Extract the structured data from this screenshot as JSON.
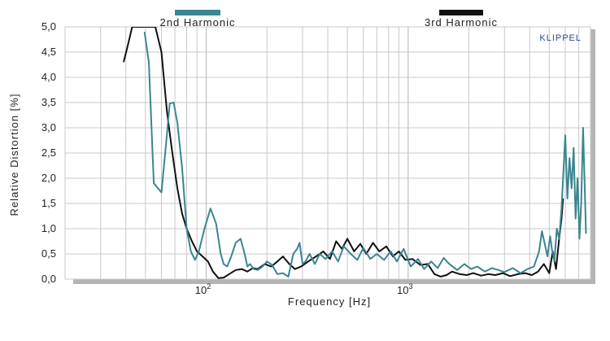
{
  "chart_data": {
    "type": "line",
    "title": "",
    "xlabel": "Frequency  [Hz]",
    "ylabel": "Relative Distortion  [%]",
    "xscale": "log",
    "xlim": [
      20,
      8000
    ],
    "ylim": [
      0,
      5
    ],
    "grid": true,
    "legend_position": "top",
    "watermark": "KLIPPEL",
    "colors": {
      "background": "#ffffff",
      "grid": "#c8c8c8",
      "frame_shadow": "#b4b4b4",
      "axis_text": "#222222",
      "watermark": "#2a4a9a"
    },
    "y_ticks": [
      "0,0",
      "0,5",
      "1,0",
      "1,5",
      "2,0",
      "2,5",
      "3,0",
      "3,5",
      "4,0",
      "4,5",
      "5,0"
    ],
    "x_ticks": [
      {
        "value": 100,
        "base": "10",
        "exp": "2"
      },
      {
        "value": 1000,
        "base": "10",
        "exp": "3"
      }
    ],
    "series": [
      {
        "name": "2nd Harmonic",
        "color": "#3a8590",
        "x": [
          49.5,
          52,
          55,
          60,
          63,
          66,
          69,
          72,
          76,
          80,
          84,
          88,
          92,
          98,
          105,
          112,
          118,
          122,
          127,
          133,
          140,
          148,
          155,
          160,
          165,
          172,
          180,
          190,
          200,
          212,
          225,
          240,
          255,
          270,
          282,
          290,
          300,
          310,
          325,
          345,
          365,
          390,
          420,
          450,
          480,
          520,
          560,
          600,
          650,
          700,
          760,
          820,
          880,
          950,
          1030,
          1120,
          1200,
          1300,
          1400,
          1500,
          1600,
          1750,
          1900,
          2050,
          2200,
          2400,
          2600,
          2800,
          3000,
          3300,
          3600,
          3900,
          4200,
          4450,
          4600,
          4750,
          4900,
          5050,
          5150,
          5300,
          5450,
          5600,
          5750,
          5850,
          6000,
          6150,
          6300,
          6450,
          6600,
          6750,
          6900,
          7050,
          7200,
          7350,
          7450,
          7600
        ],
        "values": [
          4.9,
          4.3,
          1.9,
          1.72,
          2.6,
          3.48,
          3.5,
          3.1,
          2.2,
          1.0,
          0.55,
          0.38,
          0.55,
          1.0,
          1.4,
          1.1,
          0.5,
          0.3,
          0.25,
          0.45,
          0.72,
          0.8,
          0.5,
          0.25,
          0.3,
          0.2,
          0.18,
          0.25,
          0.35,
          0.28,
          0.1,
          0.12,
          0.05,
          0.5,
          0.6,
          0.72,
          0.3,
          0.35,
          0.5,
          0.3,
          0.5,
          0.4,
          0.55,
          0.35,
          0.65,
          0.5,
          0.38,
          0.62,
          0.4,
          0.5,
          0.38,
          0.55,
          0.35,
          0.6,
          0.25,
          0.4,
          0.2,
          0.35,
          0.22,
          0.42,
          0.3,
          0.18,
          0.3,
          0.2,
          0.25,
          0.15,
          0.22,
          0.18,
          0.14,
          0.22,
          0.12,
          0.2,
          0.25,
          0.55,
          0.95,
          0.7,
          0.45,
          0.85,
          0.6,
          0.35,
          1.0,
          0.8,
          1.4,
          2.0,
          2.85,
          1.6,
          2.4,
          1.8,
          2.6,
          1.2,
          2.0,
          0.8,
          1.5,
          3.0,
          2.2,
          0.9
        ]
      },
      {
        "name": "3rd Harmonic",
        "color": "#111111",
        "x": [
          39,
          41,
          43,
          45,
          48,
          52,
          56,
          60,
          64,
          68,
          72,
          76,
          80,
          85,
          90,
          96,
          102,
          108,
          115,
          122,
          130,
          140,
          150,
          160,
          170,
          180,
          195,
          210,
          225,
          240,
          258,
          275,
          295,
          320,
          350,
          380,
          410,
          440,
          470,
          500,
          540,
          580,
          620,
          670,
          720,
          780,
          840,
          900,
          970,
          1050,
          1150,
          1250,
          1350,
          1450,
          1550,
          1650,
          1800,
          1950,
          2100,
          2300,
          2500,
          2700,
          2950,
          3200,
          3500,
          3800,
          4100,
          4400,
          4700,
          5000,
          5200,
          5400,
          5600,
          5750,
          5850
        ],
        "values": [
          4.3,
          4.65,
          5.0,
          5.0,
          5.0,
          5.0,
          5.0,
          4.5,
          3.3,
          2.5,
          1.8,
          1.3,
          1.0,
          0.75,
          0.55,
          0.45,
          0.35,
          0.15,
          0.02,
          0.03,
          0.1,
          0.18,
          0.2,
          0.15,
          0.22,
          0.2,
          0.3,
          0.25,
          0.35,
          0.45,
          0.3,
          0.2,
          0.25,
          0.35,
          0.45,
          0.55,
          0.4,
          0.75,
          0.6,
          0.8,
          0.55,
          0.7,
          0.5,
          0.72,
          0.55,
          0.65,
          0.45,
          0.55,
          0.38,
          0.4,
          0.28,
          0.3,
          0.1,
          0.05,
          0.08,
          0.15,
          0.1,
          0.08,
          0.12,
          0.07,
          0.1,
          0.08,
          0.12,
          0.06,
          0.1,
          0.12,
          0.08,
          0.15,
          0.3,
          0.12,
          0.55,
          0.2,
          0.8,
          1.2,
          1.6
        ]
      }
    ]
  }
}
